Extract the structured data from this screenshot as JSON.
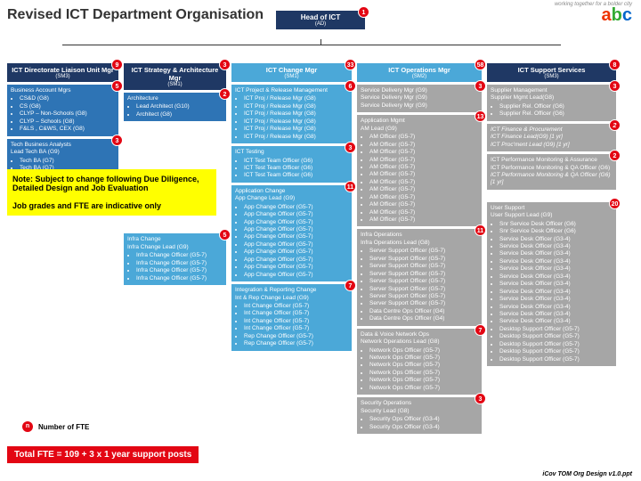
{
  "title": "Revised ICT Department Organisation",
  "head": {
    "label": "Head of ICT",
    "sub": "(AD)",
    "badge": "1"
  },
  "cols": [
    {
      "hdr": {
        "label": "ICT Directorate Liaison Unit Mgr",
        "sub": "(SM3)",
        "badge": "9",
        "cls": "darkblue"
      },
      "boxes": [
        {
          "cls": "blue",
          "badge": "5",
          "title": "Business Account Mgrs",
          "items": [
            "CS&D (G8)",
            "CS  (G8)",
            "CLYP – Non-Schools  (G8)",
            "CLYP – Schools  (G8)",
            "F&LS , C&WS, CEX (G8)"
          ]
        },
        {
          "cls": "blue",
          "badge": "3",
          "title": "Tech Business Analysts\nLead Tech BA (G9)",
          "items": [
            "Tech BA (G7)",
            "Tech BA (G7)"
          ]
        }
      ]
    },
    {
      "hdr": {
        "label": "ICT Strategy & Architecture Mgr",
        "sub": "(SM1)",
        "badge": "3",
        "cls": "darkblue"
      },
      "boxes": [
        {
          "cls": "blue",
          "badge": "2",
          "title": "Architecture",
          "items": [
            "Lead Architect (G10)",
            "Architect (G8)"
          ]
        },
        {
          "spacer": 120
        },
        {
          "cls": "lightblue",
          "badge": "5",
          "title": "Infra Change\nInfra Change Lead (G9)",
          "items": [
            "Infra Change Officer (G5-7)",
            "Infra Change Officer (G5-7)",
            "Infra Change Officer (G5-7)",
            "Infra Change Officer (G5-7)"
          ]
        }
      ]
    },
    {
      "hdr": {
        "label": "ICT Change Mgr",
        "sub": "(SM1)",
        "badge": "33",
        "cls": "lightblue-h"
      },
      "boxes": [
        {
          "cls": "lightblue",
          "badge": "6",
          "title": "ICT Project & Release Management",
          "items": [
            "ICT Proj / Release Mgr (G8)",
            "ICT Proj / Release Mgr (G8)",
            "ICT Proj / Release Mgr (G8)",
            "ICT Proj / Release Mgr (G8)",
            "ICT Proj / Release Mgr (G8)",
            "ICT Proj / Release Mgr (G8)"
          ]
        },
        {
          "cls": "lightblue",
          "badge": "3",
          "title": "ICT Testing",
          "items": [
            "ICT Test Team Officer (G6)",
            "ICT Test Team Officer (G6)",
            "ICT Test Team Officer (G6)"
          ]
        },
        {
          "cls": "lightblue",
          "badge": "11",
          "title": "Application Change\nApp Change Lead (G9)",
          "items": [
            "App Change Officer (G5-7)",
            "App Change Officer (G5-7)",
            "App Change Officer (G5-7)",
            "App Change Officer (G5-7)",
            "App Change Officer (G5-7)",
            "App Change Officer (G5-7)",
            "App Change Officer (G5-7)",
            "App Change Officer (G5-7)",
            "App Change Officer (G5-7)",
            "App Change Officer (G5-7)"
          ]
        },
        {
          "cls": "lightblue",
          "badge": "7",
          "title": "Integration & Reporting Change\nInt & Rep Change Lead (G9)",
          "items": [
            "Int Change Officer (G5-7)",
            "Int Change Officer (G5-7)",
            "Int Change Officer (G5-7)",
            "Int Change Officer (G5-7)",
            "Rep Change Officer (G5-7)",
            "Rep Change Officer (G5-7)"
          ]
        }
      ]
    },
    {
      "hdr": {
        "label": "ICT Operations Mgr",
        "sub": "(SM2)",
        "badge": "58",
        "cls": "lightblue-h"
      },
      "boxes": [
        {
          "cls": "grey",
          "badge": "3",
          "title": "Service Delivery Mgr (G9)\nService Delivery Mgr (G9)\nService Delivery Mgr (G9)",
          "items": []
        },
        {
          "cls": "grey",
          "badge": "13",
          "title": "Application Mgmt\nAM Lead (G9)",
          "items": [
            "AM Officer (G5-7)",
            "AM Officer (G5-7)",
            "AM Officer (G5-7)",
            "AM Officer (G5-7)",
            "AM Officer (G5-7)",
            "AM Officer (G5-7)",
            "AM Officer (G5-7)",
            "AM Officer (G5-7)",
            "AM Officer (G5-7)",
            "AM Officer (G5-7)",
            "AM Officer (G5-7)",
            "AM Officer (G5-7)"
          ]
        },
        {
          "cls": "grey",
          "badge": "11",
          "title": "Infra Operations\nInfra Operations Lead (G8)",
          "items": [
            "Server Support Officer (G5-7)",
            "Server Support Officer (G5-7)",
            "Server Support Officer (G5-7)",
            "Server Support Officer (G5-7)",
            "Server Support Officer (G5-7)",
            "Server Support Officer (G5-7)",
            "Server Support Officer (G5-7)",
            "Server Support Officer (G5-7)",
            "Data Centre Ops Officer (G4)",
            "Data Centre Ops Officer (G4)"
          ]
        },
        {
          "cls": "grey",
          "badge": "7",
          "title": "Data & Voice Network Ops\nNetwork Operations Lead (G8)",
          "items": [
            "Network Ops Officer (G5-7)",
            "Network Ops Officer (G5-7)",
            "Network Ops Officer (G5-7)",
            "Network Ops Officer (G5-7)",
            "Network Ops Officer (G5-7)",
            "Network Ops Officer (G5-7)"
          ]
        },
        {
          "cls": "grey",
          "badge": "3",
          "title": "Security Operations\nSecurity Lead (G8)",
          "items": [
            "Security Ops Officer (G3-4)",
            "Security Ops Officer (G3-4)"
          ]
        }
      ]
    },
    {
      "hdr": {
        "label": "ICT Support Services",
        "sub": "(SM3)",
        "badge": "8",
        "cls": "darkblue"
      },
      "boxes": [
        {
          "cls": "grey",
          "badge": "3",
          "title": "Supplier Management\nSupplier Mgmt Lead(G8)",
          "items": [
            "Supplier Rel. Officer (G6)",
            "Supplier Rel. Officer (G6)"
          ]
        },
        {
          "cls": "grey italic",
          "badge": "2",
          "title": "ICT Finance & Procurement",
          "items_nob": [
            "ICT Finance Lead(G9) [1 yr]",
            "ICT Proc'ment Lead (G9) [1 yr]"
          ]
        },
        {
          "cls": "grey",
          "badge": "2",
          "title": "ICT Performance Monitoring & Assurance\nICT Performance Monitoring & QA Officer (G6)",
          "items_nob_i": [
            "ICT Performance Monitoring & QA Officer (G6) [1 yr]"
          ]
        },
        {
          "spacer": 8
        },
        {
          "cls": "grey",
          "badge": "20",
          "title": "User Support\nUser Support Lead (G9)",
          "items": [
            "Snr Service Desk Officer (G6)",
            "Snr Service Desk Officer (G6)",
            "Service Desk Officer (G3-4)",
            "Service Desk Officer (G3-4)",
            "Service Desk Officer (G3-4)",
            "Service Desk Officer (G3-4)",
            "Service Desk Officer (G3-4)",
            "Service Desk Officer (G3-4)",
            "Service Desk Officer (G3-4)",
            "Service Desk Officer (G3-4)",
            "Service Desk Officer (G3-4)",
            "Service Desk Officer (G3-4)",
            "Service Desk Officer (G3-4)",
            "Service Desk Officer (G3-4)",
            "Desktop Support Officer (G5-7)",
            "Desktop Support Officer (G5-7)",
            "Desktop Support Officer (G5-7)",
            "Desktop Support Officer (G5-7)",
            "Desktop Support Officer (G5-7)"
          ]
        }
      ]
    }
  ],
  "note1": "Note: Subject to change following Due Diligence, Detailed Design and Job Evaluation",
  "note2": "Job grades and FTE are indicative only",
  "legend": "Number of FTE",
  "total": "Total FTE = 109 + 3 x 1 year support posts",
  "footer": "iCov TOM Org Design v1.0.ppt",
  "tagline": "working together for a bolder city"
}
